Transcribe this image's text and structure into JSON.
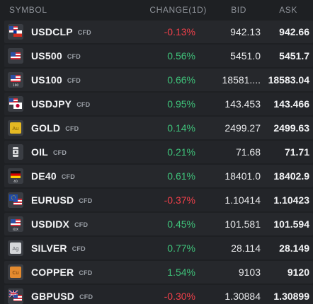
{
  "header": {
    "symbol": "SYMBOL",
    "change": "CHANGE(1D)",
    "bid": "BID",
    "ask": "ASK"
  },
  "colors": {
    "positive": "#3fc27a",
    "negative": "#f0404a"
  },
  "rows": [
    {
      "symbol": "USDCLP",
      "tag": "CFD",
      "change": "-0.13%",
      "direction": "neg",
      "bid": "942.13",
      "ask": "942.66",
      "icon": "us-chile-flag-icon"
    },
    {
      "symbol": "US500",
      "tag": "CFD",
      "change": "0.56%",
      "direction": "pos",
      "bid": "5451.0",
      "ask": "5451.7",
      "icon": "us-flag-icon"
    },
    {
      "symbol": "US100",
      "tag": "CFD",
      "change": "0.66%",
      "direction": "pos",
      "bid": "18581....",
      "ask": "18583.04",
      "icon": "us-flag-icon"
    },
    {
      "symbol": "USDJPY",
      "tag": "CFD",
      "change": "0.95%",
      "direction": "pos",
      "bid": "143.453",
      "ask": "143.466",
      "icon": "us-japan-flag-icon"
    },
    {
      "symbol": "GOLD",
      "tag": "CFD",
      "change": "0.14%",
      "direction": "pos",
      "bid": "2499.27",
      "ask": "2499.63",
      "icon": "gold-au-icon"
    },
    {
      "symbol": "OIL",
      "tag": "CFD",
      "change": "0.21%",
      "direction": "pos",
      "bid": "71.68",
      "ask": "71.71",
      "icon": "oil-barrel-icon"
    },
    {
      "symbol": "DE40",
      "tag": "CFD",
      "change": "0.61%",
      "direction": "pos",
      "bid": "18401.0",
      "ask": "18402.9",
      "icon": "germany-flag-icon"
    },
    {
      "symbol": "EURUSD",
      "tag": "CFD",
      "change": "-0.37%",
      "direction": "neg",
      "bid": "1.10414",
      "ask": "1.10423",
      "icon": "eu-us-flag-icon"
    },
    {
      "symbol": "USDIDX",
      "tag": "CFD",
      "change": "0.45%",
      "direction": "pos",
      "bid": "101.581",
      "ask": "101.594",
      "icon": "us-flag-icon"
    },
    {
      "symbol": "SILVER",
      "tag": "CFD",
      "change": "0.77%",
      "direction": "pos",
      "bid": "28.114",
      "ask": "28.149",
      "icon": "silver-ag-icon"
    },
    {
      "symbol": "COPPER",
      "tag": "CFD",
      "change": "1.54%",
      "direction": "pos",
      "bid": "9103",
      "ask": "9120",
      "icon": "copper-cu-icon"
    },
    {
      "symbol": "GBPUSD",
      "tag": "CFD",
      "change": "-0.30%",
      "direction": "neg",
      "bid": "1.30884",
      "ask": "1.30899",
      "icon": "uk-us-flag-icon"
    }
  ],
  "icon_labels": {
    "gold": "Au",
    "silver": "Ag",
    "copper": "Cu",
    "de40": "40",
    "us100": "100",
    "usdidx": "IDX"
  }
}
